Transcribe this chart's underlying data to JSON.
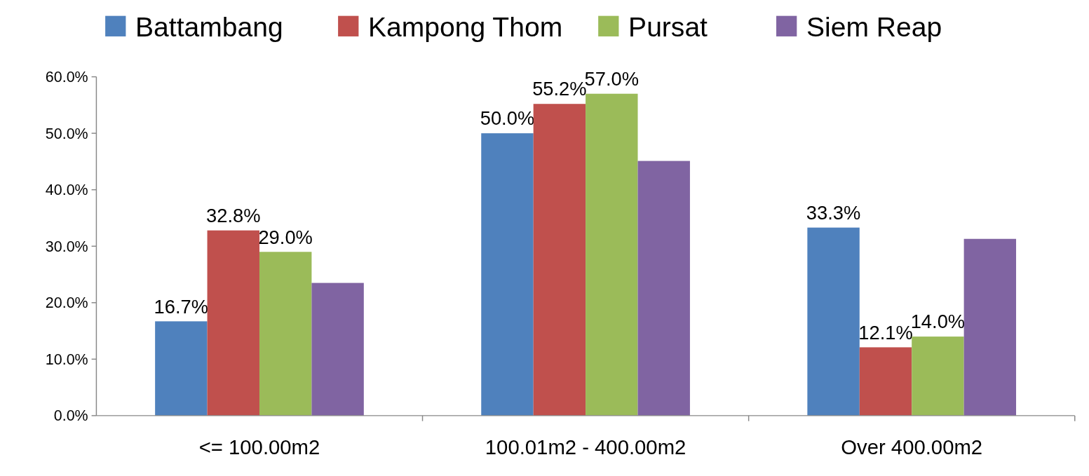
{
  "chart_data": {
    "type": "bar",
    "categories": [
      "<= 100.00m2",
      "100.01m2 - 400.00m2",
      "Over 400.00m2"
    ],
    "series": [
      {
        "name": "Battambang",
        "color": "#4f81bd",
        "values": [
          16.7,
          50.0,
          33.3
        ],
        "value_labels": [
          "16.7%",
          "50.0%",
          "33.3%"
        ]
      },
      {
        "name": "Kampong Thom",
        "color": "#c0504d",
        "values": [
          32.8,
          55.2,
          12.1
        ],
        "value_labels": [
          "32.8%",
          "55.2%",
          "12.1%"
        ]
      },
      {
        "name": "Pursat",
        "color": "#9bbb59",
        "values": [
          29.0,
          57.0,
          14.0
        ],
        "value_labels": [
          "29.0%",
          "57.0%",
          "14.0%"
        ]
      },
      {
        "name": "Siem Reap",
        "color": "#8064a2",
        "values": [
          23.5,
          45.1,
          31.3
        ]
      }
    ],
    "ylim": [
      0,
      60
    ],
    "yticks": [
      {
        "value": 0,
        "label": "0.0%"
      },
      {
        "value": 10,
        "label": "10.0%"
      },
      {
        "value": 20,
        "label": "20.0%"
      },
      {
        "value": 30,
        "label": "30.0%"
      },
      {
        "value": 40,
        "label": "40.0%"
      },
      {
        "value": 50,
        "label": "50.0%"
      },
      {
        "value": 60,
        "label": "60.0%"
      }
    ],
    "grid": false,
    "legend": "top"
  }
}
